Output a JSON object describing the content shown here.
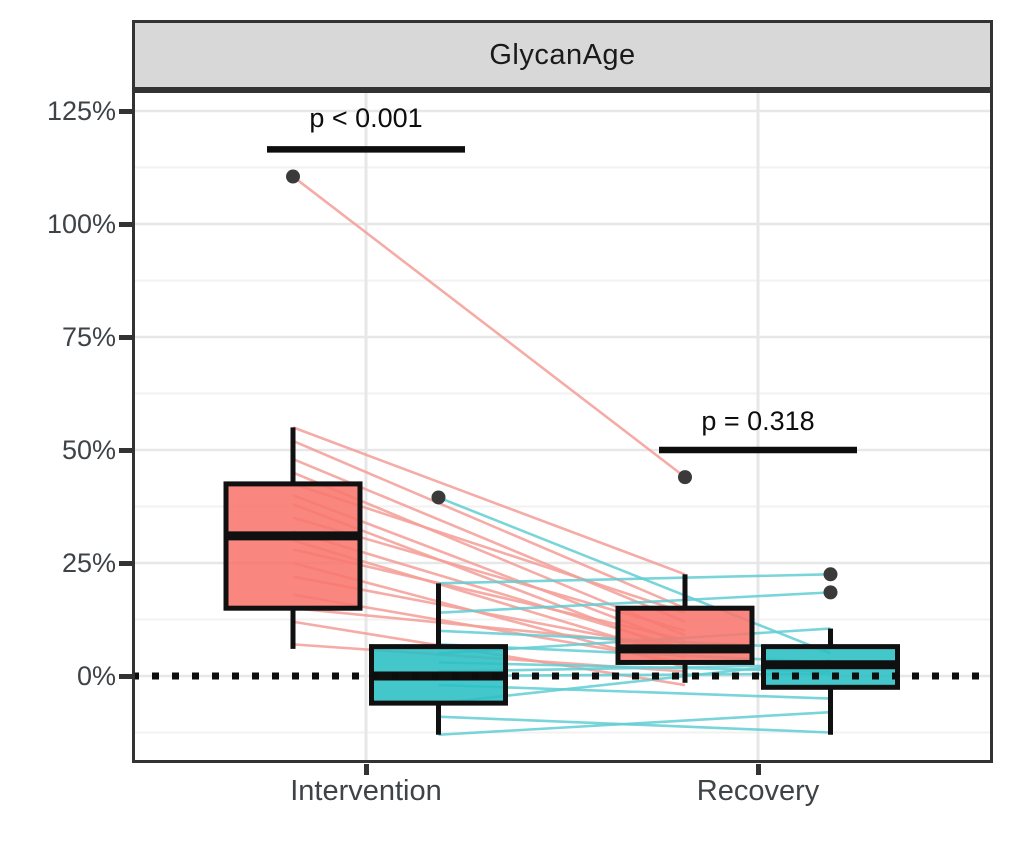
{
  "chart": {
    "facet_title": "GlycanAge",
    "colors": {
      "red_fill": "#F8766D",
      "teal_fill": "#2ABFC4",
      "red_pair_line": "#F59E97",
      "teal_pair_line": "#62CED3",
      "outlier_dot": "#3A3A3A",
      "box_stroke": "#101010",
      "strip_bg": "#D8D8D8",
      "frame": "#333333",
      "grid_major": "#E7E7E7",
      "grid_minor": "#F2F2F2",
      "axis_text": "#3E4347",
      "annotation": "#0D0D0D"
    }
  },
  "chart_data": {
    "type": "boxplot",
    "title": "GlycanAge",
    "subtitle": "",
    "xlabel": "",
    "ylabel": "",
    "categories": [
      "Intervention",
      "Recovery"
    ],
    "y_axis": {
      "ticks": [
        {
          "label": "125%",
          "value": 125
        },
        {
          "label": "100%",
          "value": 100
        },
        {
          "label": "75%",
          "value": 75
        },
        {
          "label": "50%",
          "value": 50
        },
        {
          "label": "25%",
          "value": 25
        },
        {
          "label": "0%",
          "value": 0
        }
      ],
      "ylim": [
        -19,
        129.5
      ],
      "grid_major": [
        0,
        25,
        50,
        75,
        100,
        125
      ],
      "grid_minor": [
        -12.5,
        12.5,
        37.5,
        62.5,
        87.5,
        112.5
      ],
      "grid": "on"
    },
    "reference_line": {
      "value": 0,
      "style": "dotted"
    },
    "legend": "none",
    "groups": [
      {
        "id": "intervention-red",
        "category": "Intervention",
        "series": "red",
        "whisker_low": 6,
        "q1": 15,
        "median": 31,
        "q3": 42.5,
        "whisker_high": 55,
        "outliers": [
          110.5
        ]
      },
      {
        "id": "intervention-teal",
        "category": "Intervention",
        "series": "teal",
        "whisker_low": -13,
        "q1": -6,
        "median": 0,
        "q3": 6.5,
        "whisker_high": 20.5,
        "outliers": [
          39.5
        ]
      },
      {
        "id": "recovery-red",
        "category": "Recovery",
        "series": "red",
        "whisker_low": -1.5,
        "q1": 3,
        "median": 6,
        "q3": 15,
        "whisker_high": 22.5,
        "outliers": [
          44
        ]
      },
      {
        "id": "recovery-teal",
        "category": "Recovery",
        "series": "teal",
        "whisker_low": -13,
        "q1": -2.5,
        "median": 2.5,
        "q3": 6.5,
        "whisker_high": 10.5,
        "outliers": [
          22.5,
          18.5
        ]
      }
    ],
    "pair_lines": {
      "red": [
        [
          110.5,
          44
        ],
        [
          55,
          22.5
        ],
        [
          52,
          15
        ],
        [
          48,
          12
        ],
        [
          45,
          9
        ],
        [
          42.5,
          14
        ],
        [
          40,
          7
        ],
        [
          38,
          5
        ],
        [
          35,
          10
        ],
        [
          32,
          6
        ],
        [
          30,
          4
        ],
        [
          28,
          8
        ],
        [
          25,
          2
        ],
        [
          22,
          5.5
        ],
        [
          18,
          3
        ],
        [
          15,
          6.5
        ],
        [
          12,
          -2
        ],
        [
          7,
          1
        ]
      ],
      "teal": [
        [
          39.5,
          5
        ],
        [
          20.5,
          22.5
        ],
        [
          14,
          18.5
        ],
        [
          10,
          6
        ],
        [
          7,
          3
        ],
        [
          5,
          10.5
        ],
        [
          3,
          1
        ],
        [
          1,
          2.5
        ],
        [
          0,
          0.5
        ],
        [
          -2,
          -5
        ],
        [
          -6,
          3.5
        ],
        [
          -9,
          -12.5
        ],
        [
          -13,
          -8
        ]
      ]
    },
    "annotations": [
      {
        "label": "p < 0.001",
        "category": "Intervention",
        "bar_value": 116.5,
        "text_value": 123.5
      },
      {
        "label": "p = 0.318",
        "category": "Recovery",
        "bar_value": 50,
        "text_value": 56.5
      }
    ]
  }
}
